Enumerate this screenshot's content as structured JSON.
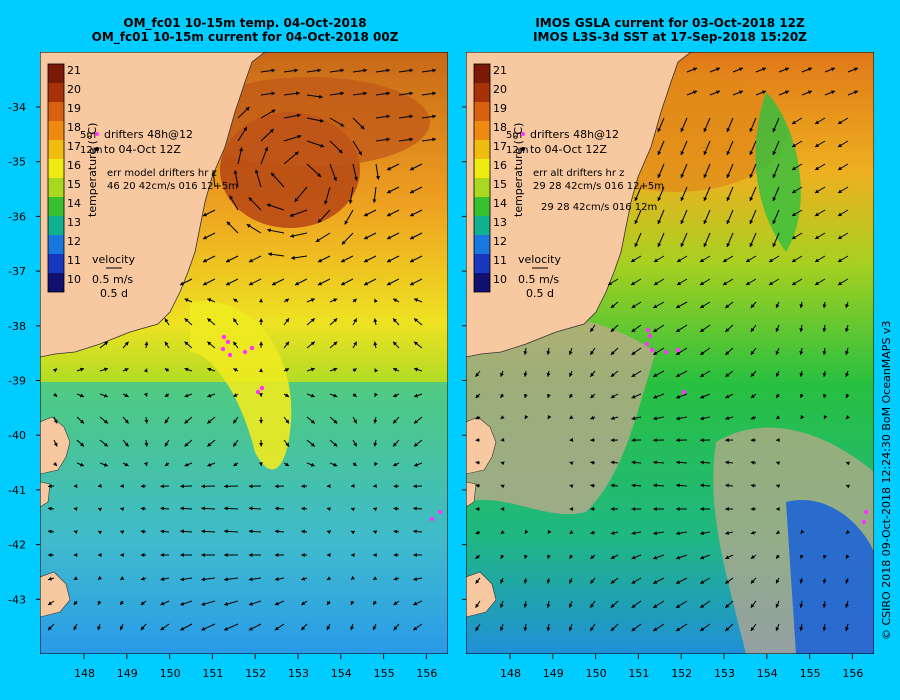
{
  "left_panel": {
    "title_line1": "OM_fc01 10-15m temp. 04-Oct-2018",
    "title_line2": "OM_fc01 10-15m current for 04-Oct-2018 00Z",
    "legend": {
      "drifters": "drifters 48h@12",
      "to": "to 04-Oct 12Z",
      "depth_a": "5m",
      "depth_b": "12m",
      "err_label": "err model drifters hr z",
      "err_line1": "46 20 42cm/s 016 12+5m",
      "err_line2": ""
    }
  },
  "right_panel": {
    "title_line1": "IMOS GSLA current for 03-Oct-2018 12Z",
    "title_line2": "IMOS L3S-3d SST at 17-Sep-2018 15:20Z",
    "legend": {
      "drifters": "drifters 48h@12",
      "to": "to 04-Oct 12Z",
      "depth_a": "5m",
      "depth_b": "12m",
      "err_label": "err alt drifters hr z",
      "err_line1": "29 28 42cm/s 016 12+5m",
      "err_line2": "29 28 42cm/s 016 12m"
    }
  },
  "colorbar": {
    "label": "temperature (°C)",
    "ticks": [
      "21",
      "20",
      "19",
      "18",
      "17",
      "16",
      "15",
      "14",
      "13",
      "12",
      "11",
      "10"
    ]
  },
  "velocity_legend": {
    "title": "velocity",
    "speed": "0.5 m/s",
    "duration": "0.5 d"
  },
  "lat_labels": [
    "-34",
    "-35",
    "-36",
    "-37",
    "-38",
    "-39",
    "-40",
    "-41",
    "-42",
    "-43"
  ],
  "lon_labels": [
    "148",
    "149",
    "150",
    "151",
    "152",
    "153",
    "154",
    "155",
    "156"
  ],
  "credit": "© CSIRO 2018   09-Oct-2018 12:24:30 BoM OceanMAPS v3",
  "colors": {
    "frame": "#00ccff",
    "land": "#f8c8a0",
    "land_gray": "#c4a88c",
    "drifter": "#ff33ff"
  }
}
